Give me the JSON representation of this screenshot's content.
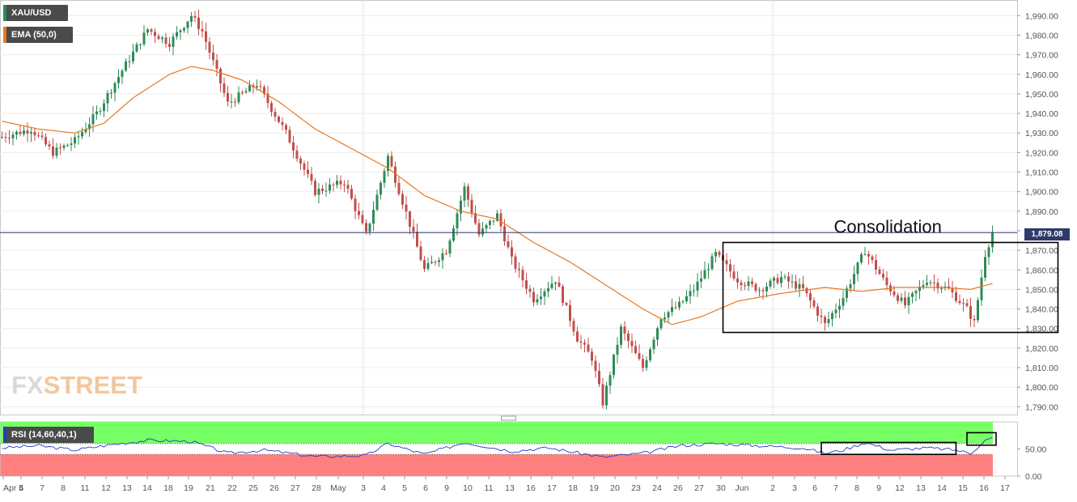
{
  "instrument_label": "XAU/USD",
  "ema_label": "EMA (50,0)",
  "rsi_label": "RSI (14,60,40,1)",
  "watermark": {
    "part1": "FX",
    "part2": "STREET"
  },
  "annotation": "Consolidation",
  "current_price_label": "1,879.08",
  "colors": {
    "bull": "#2e8b57",
    "bear": "#c0504d",
    "ema": "#e87722",
    "rsi_line": "#1f3fbf",
    "rsi_upper_zone": "#77ff66",
    "rsi_lower_zone": "#ff7f7f",
    "price_line": "#2e3b6b"
  },
  "chart_data": [
    {
      "type": "candlestick",
      "title": "XAU/USD",
      "y_ticks": [
        "1,790.00",
        "1,800.00",
        "1,810.00",
        "1,820.00",
        "1,830.00",
        "1,840.00",
        "1,850.00",
        "1,860.00",
        "1,870.00",
        "1,880.00",
        "1,890.00",
        "1,900.00",
        "1,910.00",
        "1,920.00",
        "1,930.00",
        "1,940.00",
        "1,950.00",
        "1,960.00",
        "1,970.00",
        "1,980.00",
        "1,990.00"
      ],
      "ylim": [
        1786,
        1998
      ],
      "x_ticks": [
        "Apr 4",
        "5",
        "7",
        "8",
        "11",
        "12",
        "13",
        "14",
        "18",
        "19",
        "21",
        "22",
        "25",
        "26",
        "27",
        "28",
        "May",
        "3",
        "4",
        "5",
        "6",
        "9",
        "10",
        "11",
        "13",
        "16",
        "17",
        "18",
        "19",
        "20",
        "23",
        "24",
        "26",
        "27",
        "30",
        "Jun",
        "2",
        "3",
        "6",
        "7",
        "8",
        "9",
        "12",
        "13",
        "14",
        "15",
        "16",
        "17"
      ],
      "current_price": 1879.08,
      "anchors": [
        [
          0,
          1928
        ],
        [
          8,
          1932
        ],
        [
          14,
          1920
        ],
        [
          20,
          1926
        ],
        [
          26,
          1940
        ],
        [
          33,
          1962
        ],
        [
          40,
          1983
        ],
        [
          46,
          1976
        ],
        [
          52,
          1990
        ],
        [
          55,
          1982
        ],
        [
          62,
          1945
        ],
        [
          70,
          1955
        ],
        [
          78,
          1930
        ],
        [
          86,
          1900
        ],
        [
          94,
          1905
        ],
        [
          100,
          1878
        ],
        [
          106,
          1918
        ],
        [
          110,
          1895
        ],
        [
          116,
          1860
        ],
        [
          122,
          1870
        ],
        [
          127,
          1902
        ],
        [
          131,
          1878
        ],
        [
          136,
          1888
        ],
        [
          140,
          1865
        ],
        [
          146,
          1845
        ],
        [
          152,
          1855
        ],
        [
          158,
          1825
        ],
        [
          162,
          1815
        ],
        [
          165,
          1792
        ],
        [
          170,
          1830
        ],
        [
          176,
          1810
        ],
        [
          181,
          1836
        ],
        [
          186,
          1842
        ],
        [
          190,
          1850
        ],
        [
          196,
          1868
        ],
        [
          202,
          1855
        ],
        [
          208,
          1850
        ],
        [
          214,
          1856
        ],
        [
          220,
          1850
        ],
        [
          226,
          1832
        ],
        [
          231,
          1846
        ],
        [
          237,
          1870
        ],
        [
          243,
          1852
        ],
        [
          248,
          1842
        ],
        [
          254,
          1855
        ],
        [
          260,
          1850
        ],
        [
          265,
          1840
        ],
        [
          267,
          1833
        ],
        [
          270,
          1868
        ],
        [
          272,
          1879
        ]
      ],
      "ema_50": [
        [
          0,
          1936
        ],
        [
          10,
          1932
        ],
        [
          20,
          1930
        ],
        [
          28,
          1935
        ],
        [
          36,
          1948
        ],
        [
          46,
          1960
        ],
        [
          52,
          1964
        ],
        [
          58,
          1962
        ],
        [
          66,
          1957
        ],
        [
          76,
          1946
        ],
        [
          86,
          1932
        ],
        [
          96,
          1922
        ],
        [
          106,
          1912
        ],
        [
          116,
          1898
        ],
        [
          126,
          1890
        ],
        [
          136,
          1886
        ],
        [
          146,
          1874
        ],
        [
          156,
          1864
        ],
        [
          166,
          1852
        ],
        [
          176,
          1840
        ],
        [
          184,
          1832
        ],
        [
          192,
          1836
        ],
        [
          202,
          1844
        ],
        [
          214,
          1848
        ],
        [
          226,
          1851
        ],
        [
          236,
          1849
        ],
        [
          246,
          1851
        ],
        [
          258,
          1851
        ],
        [
          266,
          1850
        ],
        [
          272,
          1853
        ]
      ],
      "consolidation_box": {
        "x_start_bar": 198,
        "x_end_bar": 290,
        "price_low": 1828,
        "price_high": 1874
      }
    },
    {
      "type": "line",
      "title": "RSI (14,60,40,1)",
      "y_ticks": [
        "0.00",
        "50.00"
      ],
      "ylim": [
        0,
        100
      ],
      "overbought": 60,
      "oversold": 40,
      "values_anchors": [
        [
          0,
          52
        ],
        [
          10,
          56
        ],
        [
          20,
          48
        ],
        [
          30,
          58
        ],
        [
          40,
          66
        ],
        [
          52,
          64
        ],
        [
          62,
          42
        ],
        [
          72,
          48
        ],
        [
          86,
          36
        ],
        [
          100,
          38
        ],
        [
          106,
          60
        ],
        [
          116,
          40
        ],
        [
          127,
          62
        ],
        [
          140,
          46
        ],
        [
          150,
          52
        ],
        [
          165,
          35
        ],
        [
          176,
          42
        ],
        [
          186,
          56
        ],
        [
          196,
          60
        ],
        [
          208,
          56
        ],
        [
          220,
          52
        ],
        [
          226,
          42
        ],
        [
          231,
          48
        ],
        [
          237,
          62
        ],
        [
          244,
          48
        ],
        [
          254,
          52
        ],
        [
          262,
          48
        ],
        [
          266,
          42
        ],
        [
          270,
          66
        ],
        [
          272,
          70
        ]
      ]
    }
  ]
}
